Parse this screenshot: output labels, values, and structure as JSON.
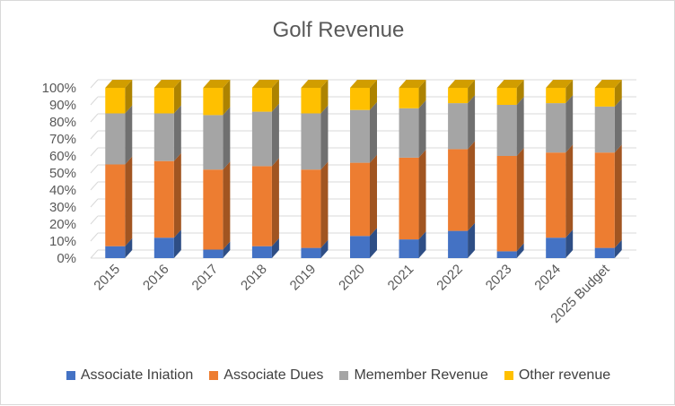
{
  "chart_data": {
    "type": "bar",
    "stacked": "percent",
    "title": "Golf Revenue",
    "categories": [
      "2015",
      "2016",
      "2017",
      "2018",
      "2019",
      "2020",
      "2021",
      "2022",
      "2023",
      "2024",
      "2025 Budget"
    ],
    "series": [
      {
        "name": "Associate Iniation",
        "color": "#4472C4",
        "values": [
          7,
          12,
          5,
          7,
          6,
          13,
          11,
          16,
          4,
          12,
          6
        ]
      },
      {
        "name": "Associate Dues",
        "color": "#ED7D31",
        "values": [
          48,
          45,
          47,
          47,
          46,
          43,
          48,
          48,
          56,
          50,
          56
        ]
      },
      {
        "name": "Memember Revenue",
        "color": "#A5A5A5",
        "values": [
          30,
          28,
          32,
          32,
          33,
          31,
          29,
          27,
          30,
          29,
          27
        ]
      },
      {
        "name": "Other revenue",
        "color": "#FFC000",
        "values": [
          15,
          15,
          16,
          14,
          15,
          13,
          12,
          9,
          10,
          9,
          11
        ]
      }
    ],
    "y_axis": {
      "ylim": [
        0,
        100
      ],
      "tick_labels": [
        "0%",
        "10%",
        "20%",
        "30%",
        "40%",
        "50%",
        "60%",
        "70%",
        "80%",
        "90%",
        "100%"
      ]
    },
    "grid": true,
    "legend_position": "bottom"
  }
}
